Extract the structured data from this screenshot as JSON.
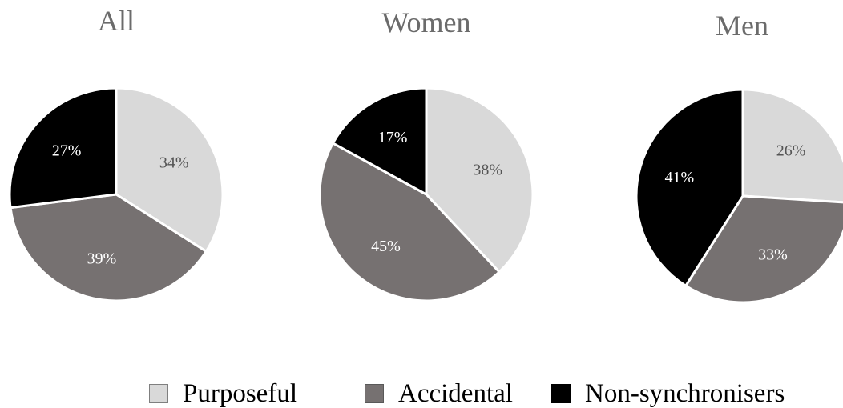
{
  "colors": {
    "purposeful": "#d9d9d9",
    "accidental": "#767171",
    "nonsync": "#000000",
    "purposeful_label": "#555555",
    "other_label": "#ffffff"
  },
  "legend": [
    {
      "key": "purposeful",
      "label": "Purposeful"
    },
    {
      "key": "accidental",
      "label": "Accidental"
    },
    {
      "key": "nonsync",
      "label": "Non-synchronisers"
    }
  ],
  "chart_data": [
    {
      "type": "pie",
      "title": "All",
      "categories": [
        "Purposeful",
        "Accidental",
        "Non-synchronisers"
      ],
      "values": [
        34,
        39,
        27
      ],
      "labels": [
        "34%",
        "39%",
        "27%"
      ]
    },
    {
      "type": "pie",
      "title": "Women",
      "categories": [
        "Purposeful",
        "Accidental",
        "Non-synchronisers"
      ],
      "values": [
        38,
        45,
        17
      ],
      "labels": [
        "38%",
        "45%",
        "17%"
      ]
    },
    {
      "type": "pie",
      "title": "Men",
      "categories": [
        "Purposeful",
        "Accidental",
        "Non-synchronisers"
      ],
      "values": [
        26,
        33,
        41
      ],
      "labels": [
        "26%",
        "33%",
        "41%"
      ]
    }
  ]
}
